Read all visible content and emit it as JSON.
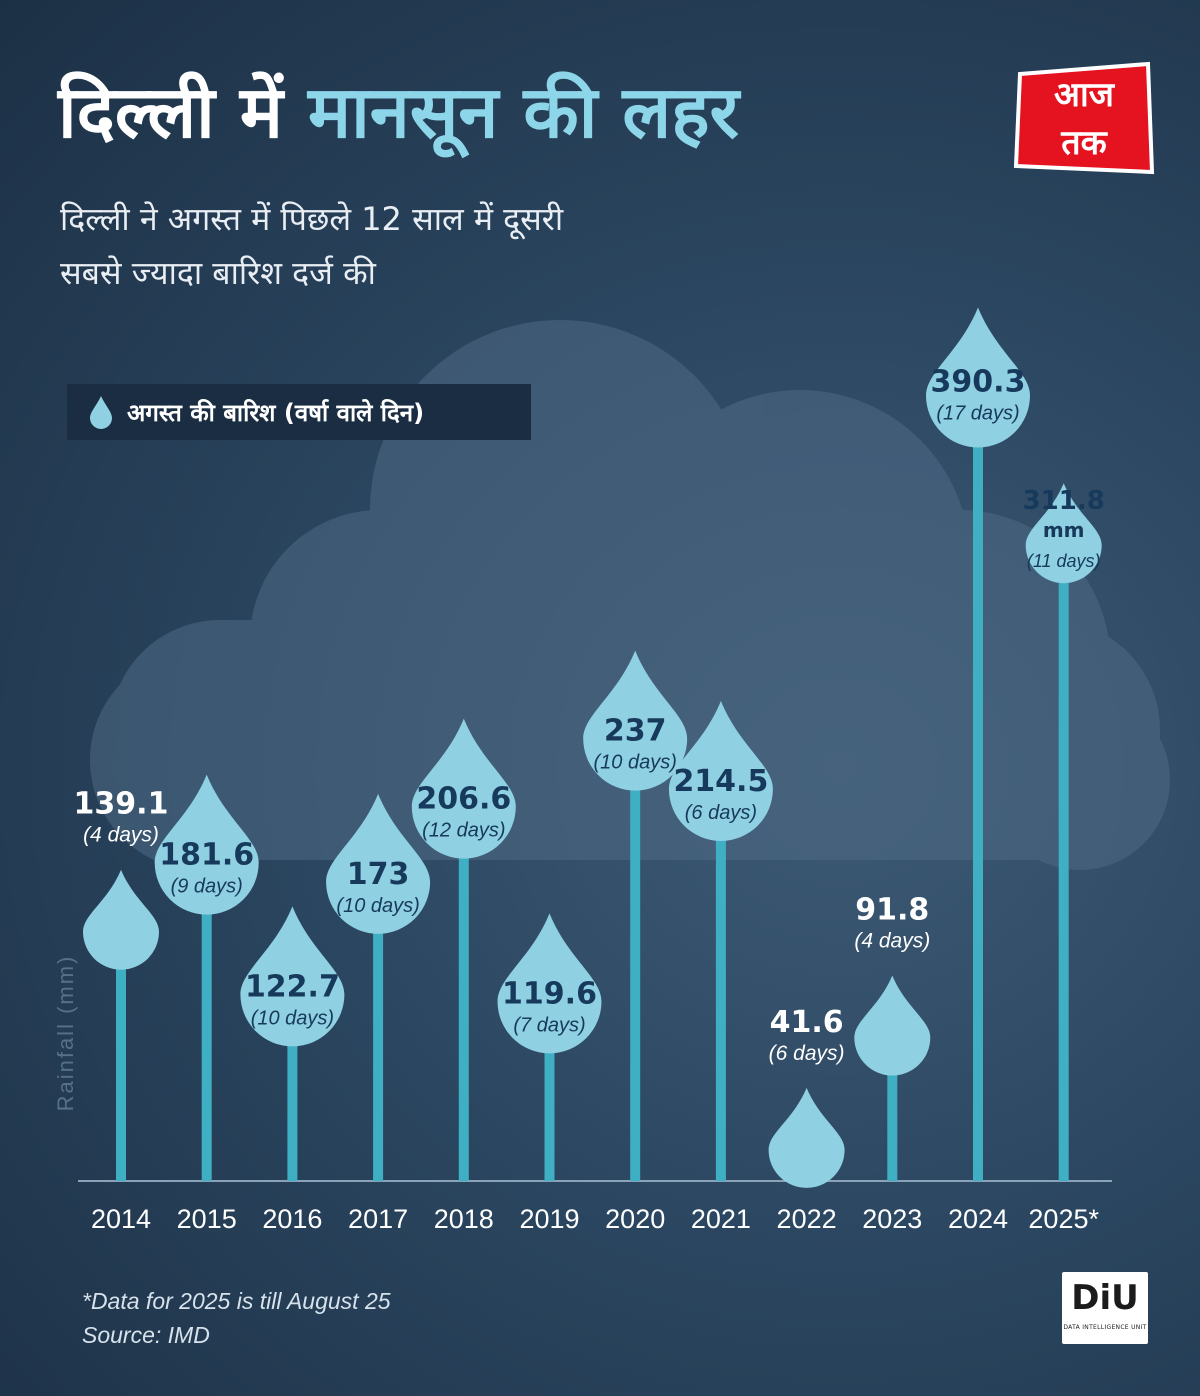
{
  "header": {
    "title_part1": "दिल्ली में",
    "title_part2": "मानसून की लहर",
    "subtitle_line1": "दिल्ली ने अगस्त में पिछले 12 साल में दूसरी",
    "subtitle_line2": "सबसे ज्यादा बारिश दर्ज की"
  },
  "brand": {
    "logo_line1": "आज",
    "logo_line2": "तक",
    "diu_main": "DiU",
    "diu_sub": "DATA INTELLIGENCE UNIT"
  },
  "legend": {
    "label": "अगस्त की बारिश (वर्षा वाले दिन)"
  },
  "footnote": {
    "line1": "*Data for 2025 is till August 25",
    "line2": "Source: IMD"
  },
  "colors": {
    "background": "#2b4660",
    "drop": "#8fd0e2",
    "stem": "#3fb0c3",
    "value_text": "#173a5c",
    "label_white": "#ffffff",
    "title_accent": "#8dd6ea",
    "logo_red": "#e5121f"
  },
  "chart_data": {
    "type": "bar",
    "categories": [
      "2014",
      "2015",
      "2016",
      "2017",
      "2018",
      "2019",
      "2020",
      "2021",
      "2022",
      "2023",
      "2024",
      "2025*"
    ],
    "series": [
      {
        "values": [
          139.1,
          181.6,
          122.7,
          173,
          206.6,
          119.6,
          237,
          214.5,
          41.6,
          91.8,
          390.3,
          311.8
        ],
        "rainy_days": [
          4,
          9,
          10,
          10,
          12,
          7,
          10,
          6,
          6,
          4,
          17,
          11
        ]
      }
    ],
    "value_labels": [
      "139.1",
      "181.6",
      "122.7",
      "173",
      "206.6",
      "119.6",
      "237",
      "214.5",
      "41.6",
      "91.8",
      "390.3",
      "311.8"
    ],
    "unit_label": "mm",
    "days_labels": [
      "(4 days)",
      "(9 days)",
      "(10 days)",
      "(10 days)",
      "(12 days)",
      "(7 days)",
      "(10 days)",
      "(6 days)",
      "(6 days)",
      "(4 days)",
      "(17 days)",
      "(11 days)"
    ],
    "ylabel": "Rainfall (mm)",
    "xlabel": "",
    "ylim": [
      0,
      390.3
    ],
    "grid": false,
    "legend_position": "top-left"
  }
}
